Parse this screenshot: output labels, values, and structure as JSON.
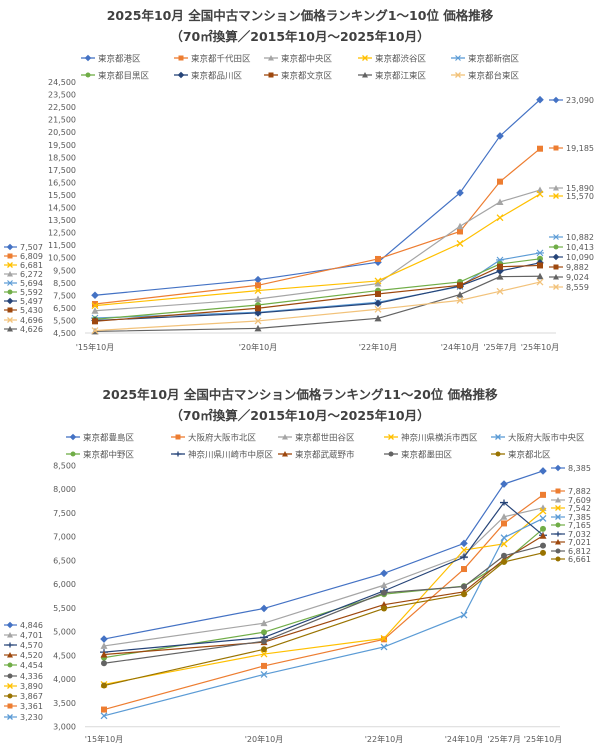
{
  "chart_data": [
    {
      "type": "line",
      "title": "2025年10月 全国中古マンション価格ランキング1～10位 価格推移",
      "subtitle": "（70㎡換算／2015年10月～2025年10月）",
      "categories": [
        "'15年10月",
        "'20年10月",
        "'22年10月",
        "'24年10月",
        "'25年7月",
        "'25年10月"
      ],
      "ylim": [
        4500,
        24500
      ],
      "ytick_step": 1000,
      "grid": false,
      "legend": "top",
      "series": [
        {
          "name": "東京都港区",
          "color": "#4472c4",
          "marker": "diamond",
          "values": [
            7507,
            8750,
            10140,
            15670,
            20200,
            23090
          ]
        },
        {
          "name": "東京都千代田区",
          "color": "#ed7d31",
          "marker": "square",
          "values": [
            6809,
            8300,
            10400,
            12590,
            16560,
            19185
          ]
        },
        {
          "name": "東京都中央区",
          "color": "#a5a5a5",
          "marker": "triangle",
          "values": [
            6272,
            7210,
            8440,
            13010,
            14940,
            15890
          ]
        },
        {
          "name": "東京都渋谷区",
          "color": "#ffc000",
          "marker": "x",
          "values": [
            6681,
            7880,
            8650,
            11630,
            13690,
            15570
          ]
        },
        {
          "name": "東京都新宿区",
          "color": "#5b9bd5",
          "marker": "star",
          "values": [
            5694,
            6150,
            6950,
            8200,
            10320,
            10882
          ]
        },
        {
          "name": "東京都目黒区",
          "color": "#70ad47",
          "marker": "circle",
          "values": [
            5592,
            6730,
            7880,
            8570,
            10000,
            10413
          ]
        },
        {
          "name": "東京都品川区",
          "color": "#264478",
          "marker": "diamond",
          "values": [
            5497,
            6100,
            6870,
            8250,
            9440,
            10090
          ]
        },
        {
          "name": "東京都文京区",
          "color": "#9e480e",
          "marker": "square",
          "values": [
            5430,
            6470,
            7610,
            8300,
            9780,
            9882
          ]
        },
        {
          "name": "東京都江東区",
          "color": "#636363",
          "marker": "triangle",
          "values": [
            4626,
            4870,
            5670,
            7560,
            8990,
            9024
          ]
        },
        {
          "name": "東京都台東区",
          "color": "#f2c27a",
          "marker": "x",
          "values": [
            4696,
            5460,
            6390,
            7100,
            7820,
            8559
          ]
        }
      ]
    },
    {
      "type": "line",
      "title": "2025年10月 全国中古マンション価格ランキング11～20位 価格推移",
      "subtitle": "（70㎡換算／2015年10月～2025年10月）",
      "categories": [
        "'15年10月",
        "'20年10月",
        "'22年10月",
        "'24年10月",
        "'25年7月",
        "'25年10月"
      ],
      "ylim": [
        3000,
        8500
      ],
      "ytick_step": 500,
      "grid": false,
      "legend": "top",
      "series": [
        {
          "name": "東京都豊島区",
          "color": "#4472c4",
          "marker": "diamond",
          "values": [
            4846,
            5490,
            6230,
            6860,
            8110,
            8385
          ]
        },
        {
          "name": "大阪府大阪市北区",
          "color": "#ed7d31",
          "marker": "square",
          "values": [
            3361,
            4280,
            4840,
            6320,
            7280,
            7882
          ]
        },
        {
          "name": "東京都世田谷区",
          "color": "#a5a5a5",
          "marker": "triangle",
          "values": [
            4701,
            5180,
            5980,
            6610,
            7420,
            7609
          ]
        },
        {
          "name": "神奈川県横浜市西区",
          "color": "#ffc000",
          "marker": "x",
          "values": [
            3890,
            4530,
            4860,
            6720,
            6850,
            7542
          ]
        },
        {
          "name": "大阪府大阪市中央区",
          "color": "#5b9bd5",
          "marker": "x",
          "values": [
            3230,
            4100,
            4680,
            5350,
            6980,
            7385
          ]
        },
        {
          "name": "東京都中野区",
          "color": "#70ad47",
          "marker": "circle",
          "values": [
            4454,
            4990,
            5790,
            5960,
            6470,
            7165
          ]
        },
        {
          "name": "神奈川県川崎市中原区",
          "color": "#264478",
          "marker": "plus",
          "values": [
            4570,
            4880,
            5860,
            6570,
            7720,
            7032
          ]
        },
        {
          "name": "東京都武蔵野市",
          "color": "#9e480e",
          "marker": "triangle",
          "values": [
            4520,
            4780,
            5570,
            5840,
            6520,
            7021
          ]
        },
        {
          "name": "東京都墨田区",
          "color": "#636363",
          "marker": "circle",
          "values": [
            4336,
            4800,
            5820,
            5950,
            6600,
            6812
          ]
        },
        {
          "name": "東京都北区",
          "color": "#997300",
          "marker": "circle",
          "values": [
            3867,
            4630,
            5490,
            5790,
            6470,
            6661
          ]
        }
      ]
    }
  ]
}
